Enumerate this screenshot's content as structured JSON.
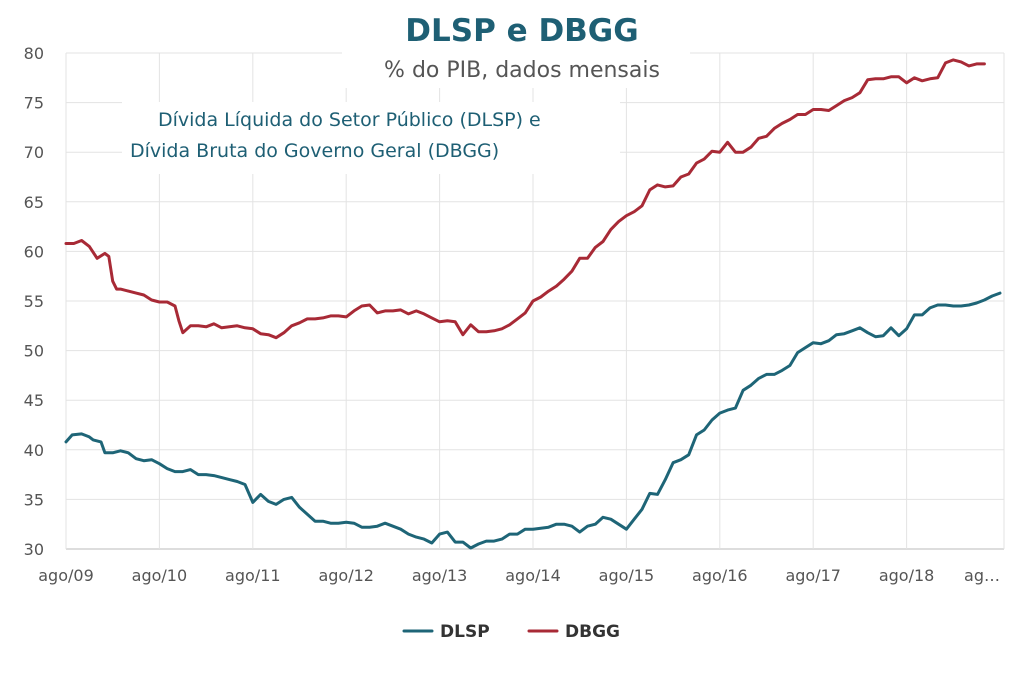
{
  "chart_data": {
    "type": "line",
    "title": "DLSP e DBGG",
    "subtitle": "% do PIB, dados mensais",
    "annotation": [
      "Dívida Líquida do Setor Público (DLSP) e",
      "Dívida Bruta do Governo Geral (DBGG)"
    ],
    "xlabel": "",
    "ylabel": "",
    "ylim": [
      30,
      80
    ],
    "yticks": [
      30,
      35,
      40,
      45,
      50,
      55,
      60,
      65,
      70,
      75,
      80
    ],
    "xlim": [
      0,
      120
    ],
    "xticks": [
      {
        "x": 0,
        "label": "ago/09"
      },
      {
        "x": 12,
        "label": "ago/10"
      },
      {
        "x": 24,
        "label": "ago/11"
      },
      {
        "x": 36,
        "label": "ago/12"
      },
      {
        "x": 48,
        "label": "ago/13"
      },
      {
        "x": 60,
        "label": "ago/14"
      },
      {
        "x": 72,
        "label": "ago/15"
      },
      {
        "x": 84,
        "label": "ago/16"
      },
      {
        "x": 96,
        "label": "ago/17"
      },
      {
        "x": 108,
        "label": "ago/18"
      },
      {
        "x": 120,
        "label": "ag…"
      }
    ],
    "grid": true,
    "legend_position": "bottom-center",
    "series": [
      {
        "name": "DLSP",
        "color": "#1e6577",
        "points": [
          [
            0,
            40.8
          ],
          [
            0.8,
            41.5
          ],
          [
            2,
            41.6
          ],
          [
            3,
            41.3
          ],
          [
            3.5,
            41.0
          ],
          [
            4,
            40.9
          ],
          [
            4.5,
            40.8
          ],
          [
            5,
            39.7
          ],
          [
            6,
            39.7
          ],
          [
            7,
            39.9
          ],
          [
            8,
            39.7
          ],
          [
            9,
            39.1
          ],
          [
            10,
            38.9
          ],
          [
            11,
            39.0
          ],
          [
            12,
            38.6
          ],
          [
            13,
            38.1
          ],
          [
            14,
            37.8
          ],
          [
            15,
            37.8
          ],
          [
            16,
            38.0
          ],
          [
            17,
            37.5
          ],
          [
            18,
            37.5
          ],
          [
            19,
            37.4
          ],
          [
            20,
            37.2
          ],
          [
            21,
            37.0
          ],
          [
            22,
            36.8
          ],
          [
            23,
            36.5
          ],
          [
            24,
            34.7
          ],
          [
            25,
            35.5
          ],
          [
            26,
            34.8
          ],
          [
            27,
            34.5
          ],
          [
            28,
            35.0
          ],
          [
            29,
            35.2
          ],
          [
            30,
            34.2
          ],
          [
            31,
            33.5
          ],
          [
            32,
            32.8
          ],
          [
            33,
            32.8
          ],
          [
            34,
            32.6
          ],
          [
            35,
            32.6
          ],
          [
            36,
            32.7
          ],
          [
            37,
            32.6
          ],
          [
            38,
            32.2
          ],
          [
            39,
            32.2
          ],
          [
            40,
            32.3
          ],
          [
            41,
            32.6
          ],
          [
            42,
            32.3
          ],
          [
            43,
            32.0
          ],
          [
            44,
            31.5
          ],
          [
            45,
            31.2
          ],
          [
            46,
            31.0
          ],
          [
            47,
            30.6
          ],
          [
            48,
            31.5
          ],
          [
            49,
            31.7
          ],
          [
            50,
            30.7
          ],
          [
            51,
            30.7
          ],
          [
            52,
            30.1
          ],
          [
            53,
            30.5
          ],
          [
            54,
            30.8
          ],
          [
            55,
            30.8
          ],
          [
            56,
            31.0
          ],
          [
            57,
            31.5
          ],
          [
            58,
            31.5
          ],
          [
            59,
            32.0
          ],
          [
            60,
            32.0
          ],
          [
            61,
            32.1
          ],
          [
            62,
            32.2
          ],
          [
            63,
            32.5
          ],
          [
            64,
            32.5
          ],
          [
            65,
            32.3
          ],
          [
            66,
            31.7
          ],
          [
            67,
            32.3
          ],
          [
            68,
            32.5
          ],
          [
            69,
            33.2
          ],
          [
            70,
            33.0
          ],
          [
            71,
            32.5
          ],
          [
            72,
            32.0
          ],
          [
            73,
            33.0
          ],
          [
            74,
            34.0
          ],
          [
            75,
            35.6
          ],
          [
            76,
            35.5
          ],
          [
            77,
            37.0
          ],
          [
            78,
            38.7
          ],
          [
            79,
            39.0
          ],
          [
            80,
            39.5
          ],
          [
            81,
            41.5
          ],
          [
            82,
            42.0
          ],
          [
            83,
            43.0
          ],
          [
            84,
            43.7
          ],
          [
            85,
            44.0
          ],
          [
            86,
            44.2
          ],
          [
            87,
            46.0
          ],
          [
            88,
            46.5
          ],
          [
            89,
            47.2
          ],
          [
            90,
            47.6
          ],
          [
            91,
            47.6
          ],
          [
            92,
            48.0
          ],
          [
            93,
            48.5
          ],
          [
            94,
            49.8
          ],
          [
            95,
            50.3
          ],
          [
            96,
            50.8
          ],
          [
            97,
            50.7
          ],
          [
            98,
            51.0
          ],
          [
            99,
            51.6
          ],
          [
            100,
            51.7
          ],
          [
            101,
            52.0
          ],
          [
            102,
            52.3
          ],
          [
            103,
            51.8
          ],
          [
            104,
            51.4
          ],
          [
            105,
            51.5
          ],
          [
            106,
            52.3
          ],
          [
            107,
            51.5
          ],
          [
            108,
            52.2
          ],
          [
            109,
            53.6
          ],
          [
            110,
            53.6
          ],
          [
            111,
            54.3
          ],
          [
            112,
            54.6
          ],
          [
            113,
            54.6
          ],
          [
            114,
            54.5
          ],
          [
            115,
            54.5
          ],
          [
            116,
            54.6
          ],
          [
            117,
            54.8
          ],
          [
            118,
            55.1
          ],
          [
            119,
            55.5
          ],
          [
            120,
            55.8
          ]
        ]
      },
      {
        "name": "DBGG",
        "color": "#a82a36",
        "points": [
          [
            0,
            60.8
          ],
          [
            1,
            60.8
          ],
          [
            2,
            61.1
          ],
          [
            3,
            60.5
          ],
          [
            4,
            59.3
          ],
          [
            5,
            59.8
          ],
          [
            5.5,
            59.5
          ],
          [
            6,
            57.0
          ],
          [
            6.5,
            56.2
          ],
          [
            7,
            56.2
          ],
          [
            8,
            56.0
          ],
          [
            9,
            55.8
          ],
          [
            10,
            55.6
          ],
          [
            11,
            55.1
          ],
          [
            12,
            54.9
          ],
          [
            13,
            54.9
          ],
          [
            14,
            54.5
          ],
          [
            14.5,
            53.0
          ],
          [
            15,
            51.8
          ],
          [
            16,
            52.5
          ],
          [
            17,
            52.5
          ],
          [
            18,
            52.4
          ],
          [
            19,
            52.7
          ],
          [
            20,
            52.3
          ],
          [
            21,
            52.4
          ],
          [
            22,
            52.5
          ],
          [
            23,
            52.3
          ],
          [
            24,
            52.2
          ],
          [
            25,
            51.7
          ],
          [
            26,
            51.6
          ],
          [
            27,
            51.3
          ],
          [
            28,
            51.8
          ],
          [
            29,
            52.5
          ],
          [
            30,
            52.8
          ],
          [
            31,
            53.2
          ],
          [
            32,
            53.2
          ],
          [
            33,
            53.3
          ],
          [
            34,
            53.5
          ],
          [
            35,
            53.5
          ],
          [
            36,
            53.4
          ],
          [
            37,
            54.0
          ],
          [
            38,
            54.5
          ],
          [
            39,
            54.6
          ],
          [
            40,
            53.8
          ],
          [
            41,
            54.0
          ],
          [
            42,
            54.0
          ],
          [
            43,
            54.1
          ],
          [
            44,
            53.7
          ],
          [
            45,
            54.0
          ],
          [
            46,
            53.7
          ],
          [
            47,
            53.3
          ],
          [
            48,
            52.9
          ],
          [
            49,
            53.0
          ],
          [
            50,
            52.9
          ],
          [
            51,
            51.6
          ],
          [
            52,
            52.6
          ],
          [
            53,
            51.9
          ],
          [
            54,
            51.9
          ],
          [
            55,
            52.0
          ],
          [
            56,
            52.2
          ],
          [
            57,
            52.6
          ],
          [
            58,
            53.2
          ],
          [
            59,
            53.8
          ],
          [
            60,
            55.0
          ],
          [
            61,
            55.4
          ],
          [
            62,
            56.0
          ],
          [
            63,
            56.5
          ],
          [
            64,
            57.2
          ],
          [
            65,
            58.0
          ],
          [
            66,
            59.3
          ],
          [
            67,
            59.3
          ],
          [
            68,
            60.4
          ],
          [
            69,
            61.0
          ],
          [
            70,
            62.2
          ],
          [
            71,
            63.0
          ],
          [
            72,
            63.6
          ],
          [
            73,
            64.0
          ],
          [
            74,
            64.6
          ],
          [
            75,
            66.2
          ],
          [
            76,
            66.7
          ],
          [
            77,
            66.5
          ],
          [
            78,
            66.6
          ],
          [
            79,
            67.5
          ],
          [
            80,
            67.8
          ],
          [
            81,
            68.9
          ],
          [
            82,
            69.3
          ],
          [
            83,
            70.1
          ],
          [
            84,
            70.0
          ],
          [
            85,
            71.0
          ],
          [
            86,
            70.0
          ],
          [
            87,
            70.0
          ],
          [
            88,
            70.5
          ],
          [
            89,
            71.4
          ],
          [
            90,
            71.6
          ],
          [
            91,
            72.4
          ],
          [
            92,
            72.9
          ],
          [
            93,
            73.3
          ],
          [
            94,
            73.8
          ],
          [
            95,
            73.8
          ],
          [
            96,
            74.3
          ],
          [
            97,
            74.3
          ],
          [
            98,
            74.2
          ],
          [
            99,
            74.7
          ],
          [
            100,
            75.2
          ],
          [
            101,
            75.5
          ],
          [
            102,
            76.0
          ],
          [
            103,
            77.3
          ],
          [
            104,
            77.4
          ],
          [
            105,
            77.4
          ],
          [
            106,
            77.6
          ],
          [
            107,
            77.6
          ],
          [
            108,
            77.0
          ],
          [
            109,
            77.5
          ],
          [
            110,
            77.2
          ],
          [
            111,
            77.4
          ],
          [
            112,
            77.5
          ],
          [
            113,
            79.0
          ],
          [
            114,
            79.3
          ],
          [
            115,
            79.1
          ],
          [
            116,
            78.7
          ],
          [
            117,
            78.9
          ],
          [
            118,
            78.9
          ]
        ]
      }
    ]
  }
}
